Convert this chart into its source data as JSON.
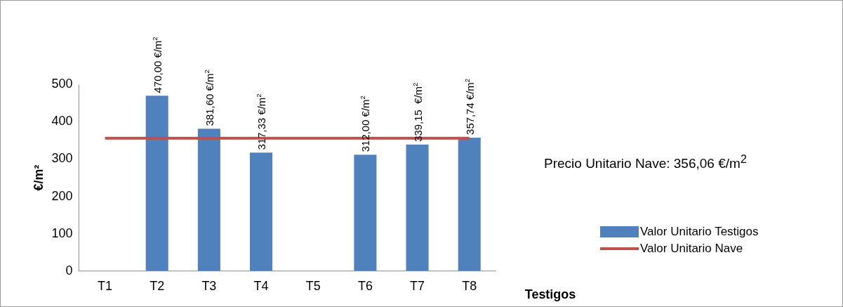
{
  "chart_data": {
    "type": "bar",
    "categories": [
      "T1",
      "T2",
      "T3",
      "T4",
      "T5",
      "T6",
      "T7",
      "T8"
    ],
    "series": [
      {
        "name": "Valor Unitario Testigos",
        "color": "#4f81bd",
        "values": [
          null,
          470.0,
          381.6,
          317.33,
          null,
          312.0,
          339.15,
          357.74
        ],
        "value_labels": [
          null,
          "470,00 €/m$^{2}$",
          "381,60 €/m$^{2}$",
          "317,33 €/m$^{2}$",
          null,
          "312,00 €/m$^{2}$",
          "339,15  €/m$^{2}$",
          "357,74 €/m$^{2}$"
        ]
      },
      {
        "name": "Valor Unitario Nave",
        "type": "line",
        "color": "#c0504d",
        "values": [
          356.06,
          356.06,
          356.06,
          356.06,
          356.06,
          356.06,
          356.06,
          356.06
        ]
      }
    ],
    "xlabel": "Testigos",
    "ylabel": "€/m²",
    "ylim": [
      0,
      500
    ],
    "yticks": [
      0,
      100,
      200,
      300,
      400,
      500
    ],
    "grid": false,
    "legend": "right",
    "marker": "none",
    "annotations": [
      "Precio Unitario Nave: 356,06 €/m$^{2}$"
    ]
  }
}
